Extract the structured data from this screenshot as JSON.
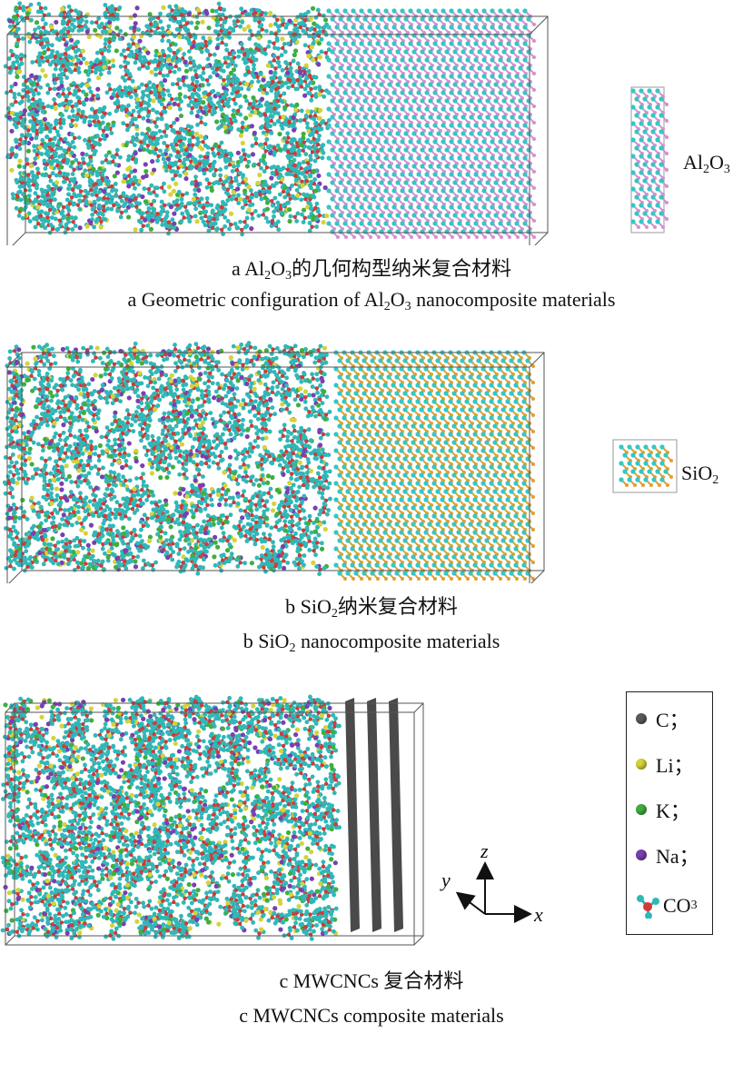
{
  "panels": [
    {
      "id": "a",
      "caption_cn": {
        "prefix": "a  Al",
        "s1": "2",
        "mid": "O",
        "s2": "3",
        "suffix": "的几何构型纳米复合材料"
      },
      "caption_en": {
        "prefix": "a  Geometric configuration of Al",
        "s1": "2",
        "mid": "O",
        "s2": "3",
        "suffix": " nanocomposite materials"
      },
      "unit_cell_label": {
        "base1": "Al",
        "s1": "2",
        "base2": "O",
        "s2": "3"
      }
    },
    {
      "id": "b",
      "caption_cn": {
        "prefix": "b  SiO",
        "s1": "2",
        "suffix": "纳米复合材料"
      },
      "caption_en": {
        "prefix": "b  SiO",
        "s1": "2",
        "suffix": " nanocomposite materials"
      },
      "unit_cell_label": {
        "base1": "SiO",
        "s1": "2"
      }
    },
    {
      "id": "c",
      "caption_cn": "c  MWCNCs 复合材料",
      "caption_en": "c  MWCNCs composite materials"
    }
  ],
  "legend": [
    {
      "label": "C；",
      "color": "#5a5a5a"
    },
    {
      "label": "Li；",
      "color": "#d6d23a"
    },
    {
      "label": "K；",
      "color": "#3fae3f"
    },
    {
      "label": "Na；",
      "color": "#7a3fb0"
    },
    {
      "label_base": "CO",
      "label_sub": "3",
      "color": "#d23a3a"
    }
  ],
  "axes": {
    "z": "z",
    "y": "y",
    "x": "x"
  },
  "colors": {
    "carbonate_c": "#2fb8b8",
    "carbonate_o": "#d23a3a",
    "li": "#d6d23a",
    "k": "#3fae3f",
    "na": "#7a3fb0",
    "al": "#d98fd0",
    "al_o": "#35c6c6",
    "si": "#e0a030",
    "cnt": "#4a4a4a",
    "box": "#555555"
  }
}
